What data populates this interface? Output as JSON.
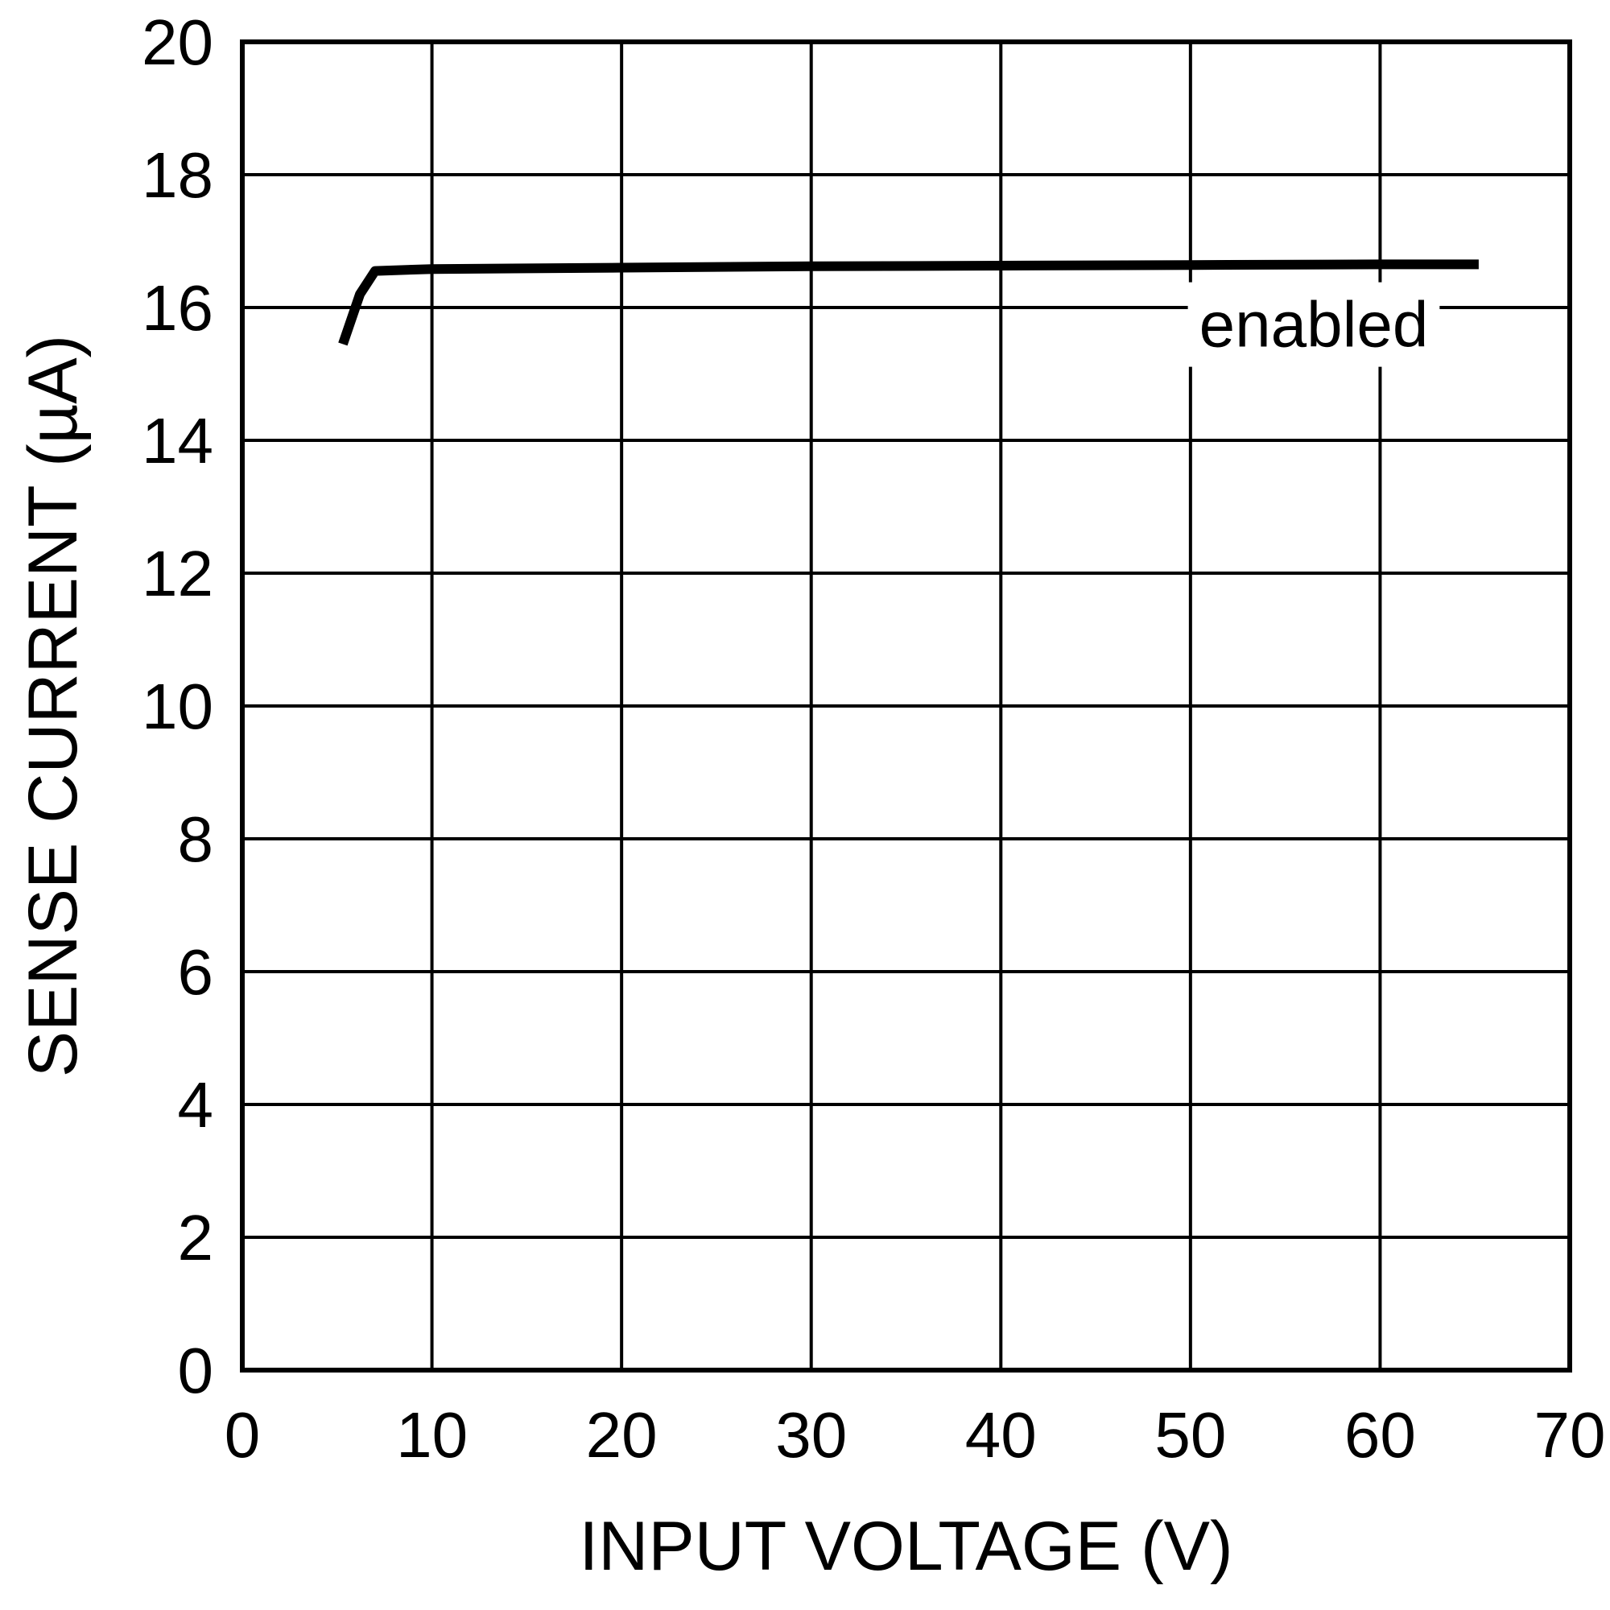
{
  "chart_data": {
    "type": "line",
    "xlabel": "INPUT VOLTAGE (V)",
    "ylabel": "SENSE CURRENT (µA)",
    "xlim": [
      0,
      70
    ],
    "ylim": [
      0,
      20
    ],
    "x_ticks": [
      0,
      10,
      20,
      30,
      40,
      50,
      60,
      70
    ],
    "y_ticks": [
      0,
      2,
      4,
      6,
      8,
      10,
      12,
      14,
      16,
      18,
      20
    ],
    "x_tick_labels": [
      "0",
      "10",
      "20",
      "30",
      "40",
      "50",
      "60",
      "70"
    ],
    "y_tick_labels": [
      "0",
      "2",
      "4",
      "6",
      "8",
      "10",
      "12",
      "14",
      "16",
      "18",
      "20"
    ],
    "grid": true,
    "series": [
      {
        "x": [
          5.3,
          6.2,
          7.0,
          10,
          20,
          30,
          40,
          50,
          60,
          65.2
        ],
        "y": [
          15.45,
          16.2,
          16.55,
          16.58,
          16.6,
          16.62,
          16.63,
          16.64,
          16.65,
          16.65
        ]
      }
    ],
    "annotations": [
      {
        "text": "enabled",
        "x": 56.5,
        "y": 15.75
      }
    ],
    "line_color": "#000000"
  }
}
